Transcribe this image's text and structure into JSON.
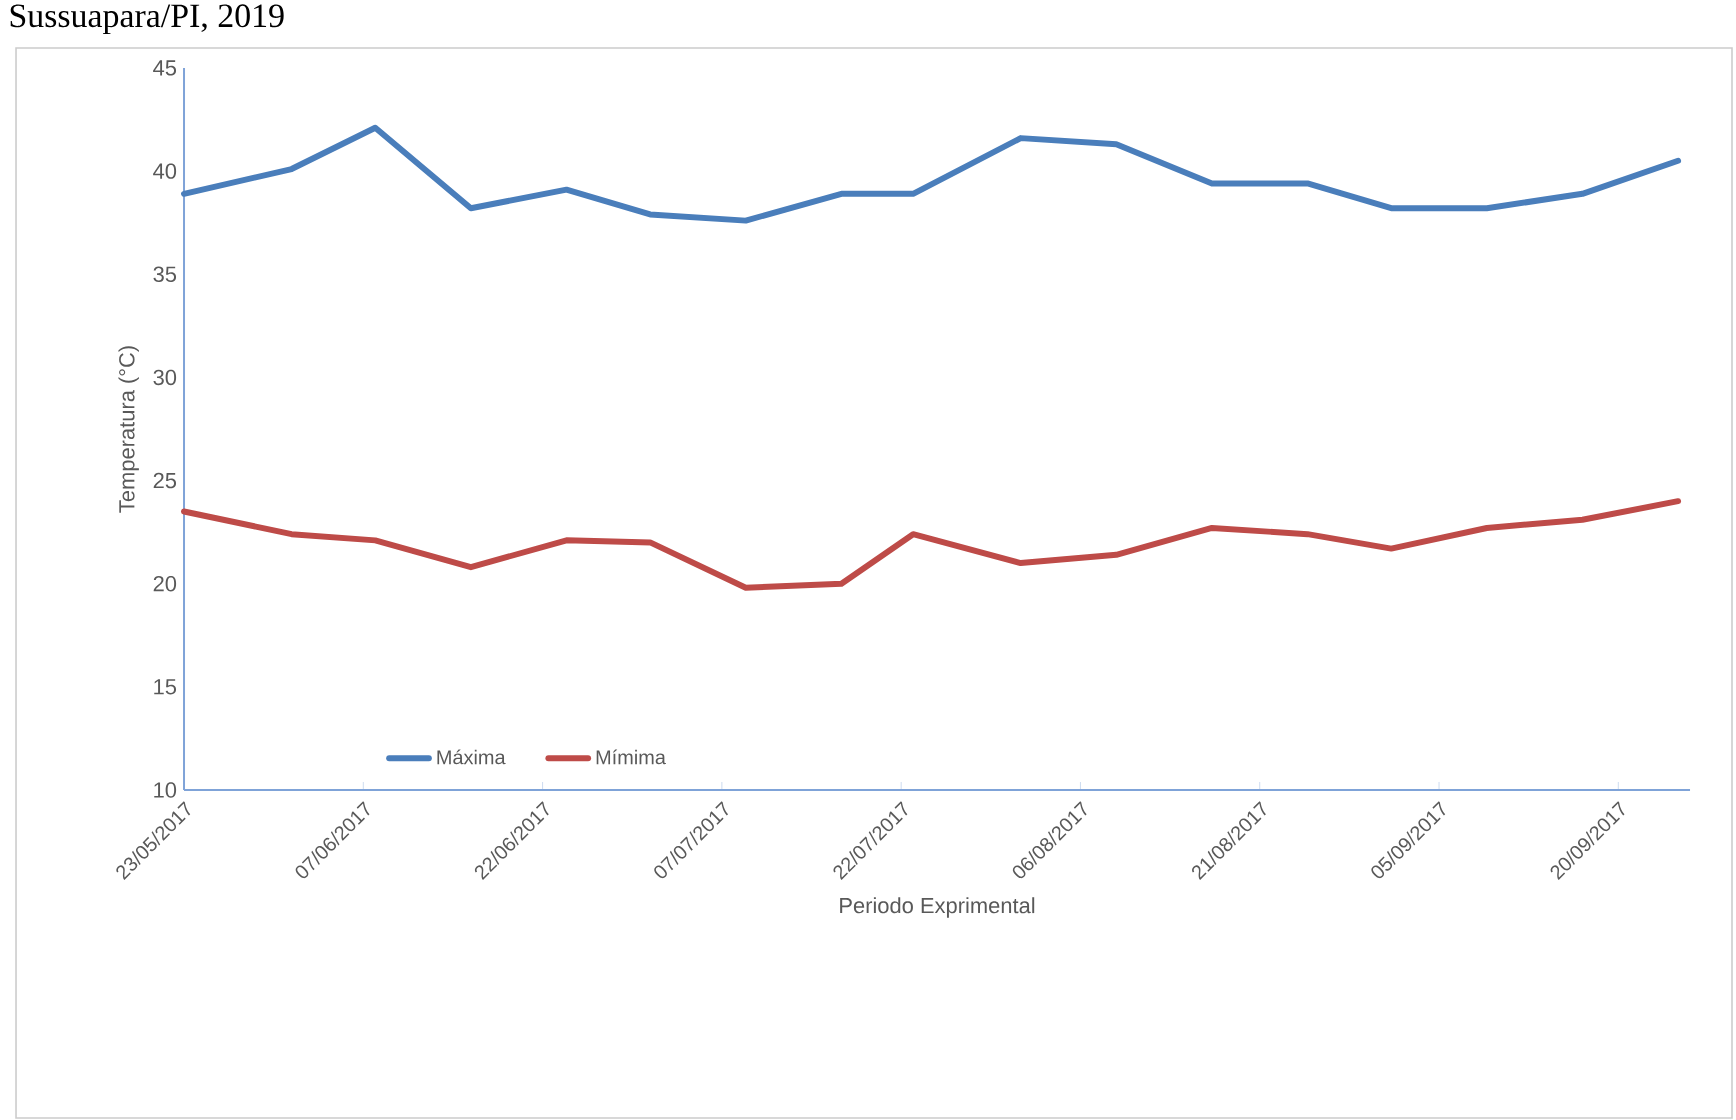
{
  "chart_data": {
    "type": "line",
    "title": "Sussuapara/PI, 2019",
    "xlabel": "Periodo Exprimental",
    "ylabel": "Temperatura (°C)",
    "x": [
      "2017-05-23",
      "2017-06-01",
      "2017-06-08",
      "2017-06-16",
      "2017-06-24",
      "2017-07-01",
      "2017-07-09",
      "2017-07-17",
      "2017-07-23",
      "2017-08-01",
      "2017-08-09",
      "2017-08-17",
      "2017-08-25",
      "2017-09-01",
      "2017-09-09",
      "2017-09-17",
      "2017-09-25"
    ],
    "series": [
      {
        "name": "Máxima",
        "color": "#4a7ebb",
        "values": [
          38.9,
          40.1,
          42.1,
          38.2,
          39.1,
          37.9,
          37.6,
          38.9,
          38.9,
          41.6,
          41.3,
          39.4,
          39.4,
          38.2,
          38.2,
          38.9,
          40.5
        ]
      },
      {
        "name": "Mímima",
        "color": "#be4b48",
        "values": [
          23.5,
          22.4,
          22.1,
          20.8,
          22.1,
          22.0,
          19.8,
          20.0,
          22.4,
          21.0,
          21.4,
          22.7,
          22.4,
          21.7,
          22.7,
          23.1,
          24.0
        ]
      }
    ],
    "xlim": [
      "2017-05-23",
      "2017-09-26"
    ],
    "xticks": [
      {
        "value": "2017-05-23",
        "label": "23/05/2017"
      },
      {
        "value": "2017-06-07",
        "label": "07/06/2017"
      },
      {
        "value": "2017-06-22",
        "label": "22/06/2017"
      },
      {
        "value": "2017-07-07",
        "label": "07/07/2017"
      },
      {
        "value": "2017-07-22",
        "label": "22/07/2017"
      },
      {
        "value": "2017-08-06",
        "label": "06/08/2017"
      },
      {
        "value": "2017-08-21",
        "label": "21/08/2017"
      },
      {
        "value": "2017-09-05",
        "label": "05/09/2017"
      },
      {
        "value": "2017-09-20",
        "label": "20/09/2017"
      }
    ],
    "ylim": [
      10,
      45
    ],
    "yticks": [
      10,
      15,
      20,
      25,
      30,
      35,
      40,
      45
    ],
    "grid": false,
    "legend": "bottom left",
    "marker": "none",
    "line_style": "solid"
  }
}
